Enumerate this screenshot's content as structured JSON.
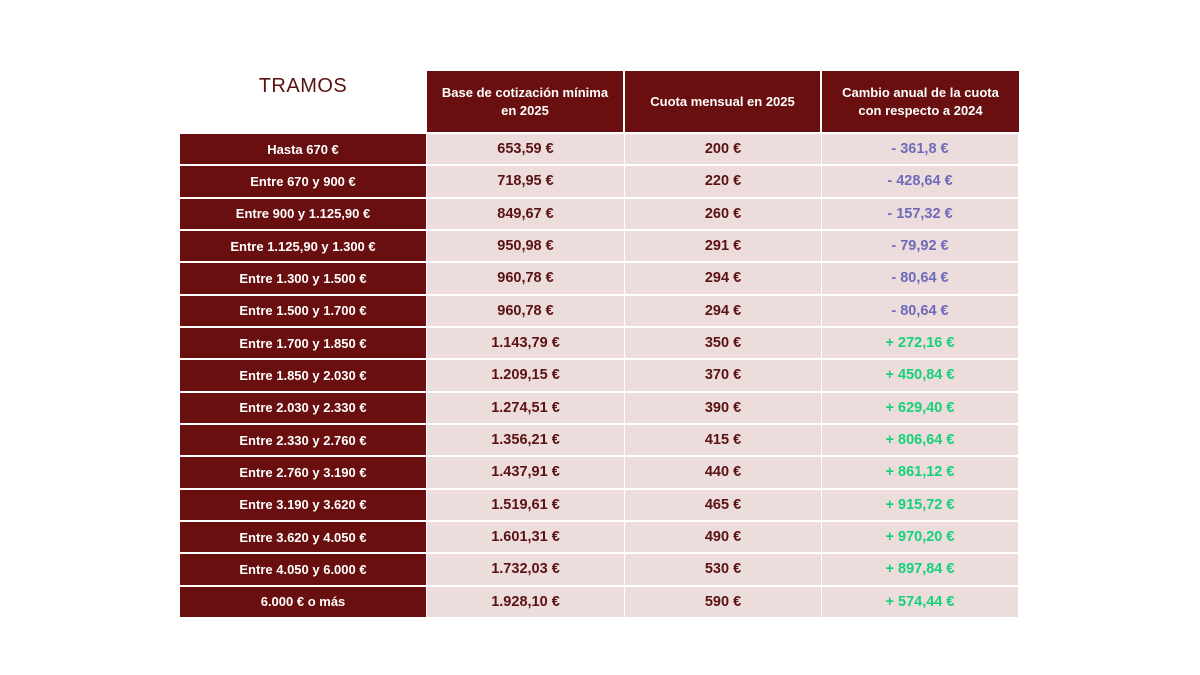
{
  "table": {
    "title": "TRAMOS",
    "headers": [
      "Base de cotización mínima en 2025",
      "Cuota mensual en 2025",
      "Cambio anual de la cuota con respecto a 2024"
    ],
    "rows": [
      {
        "tramo": "Hasta 670 €",
        "base": "653,59 €",
        "cuota": "200 €",
        "cambio": "- 361,8 €"
      },
      {
        "tramo": "Entre 670 y 900 €",
        "base": "718,95 €",
        "cuota": "220 €",
        "cambio": "- 428,64 €"
      },
      {
        "tramo": "Entre 900 y 1.125,90 €",
        "base": "849,67 €",
        "cuota": "260 €",
        "cambio": "- 157,32 €"
      },
      {
        "tramo": "Entre 1.125,90 y 1.300 €",
        "base": "950,98 €",
        "cuota": "291 €",
        "cambio": "- 79,92 €"
      },
      {
        "tramo": "Entre 1.300 y 1.500 €",
        "base": "960,78 €",
        "cuota": "294 €",
        "cambio": "- 80,64 €"
      },
      {
        "tramo": "Entre 1.500 y 1.700 €",
        "base": "960,78 €",
        "cuota": "294 €",
        "cambio": "- 80,64 €"
      },
      {
        "tramo": "Entre 1.700 y 1.850 €",
        "base": "1.143,79 €",
        "cuota": "350 €",
        "cambio": "+ 272,16 €"
      },
      {
        "tramo": "Entre 1.850 y 2.030 €",
        "base": "1.209,15 €",
        "cuota": "370 €",
        "cambio": "+ 450,84 €"
      },
      {
        "tramo": "Entre 2.030 y 2.330 €",
        "base": "1.274,51 €",
        "cuota": "390 €",
        "cambio": "+ 629,40 €"
      },
      {
        "tramo": "Entre 2.330 y 2.760 €",
        "base": "1.356,21 €",
        "cuota": "415 €",
        "cambio": "+ 806,64 €"
      },
      {
        "tramo": "Entre 2.760 y 3.190 €",
        "base": "1.437,91 €",
        "cuota": "440 €",
        "cambio": "+ 861,12 €"
      },
      {
        "tramo": "Entre 3.190 y 3.620 €",
        "base": "1.519,61 €",
        "cuota": "465 €",
        "cambio": "+ 915,72 €"
      },
      {
        "tramo": "Entre 3.620 y 4.050 €",
        "base": "1.601,31 €",
        "cuota": "490 €",
        "cambio": "+ 970,20 €"
      },
      {
        "tramo": "Entre 4.050 y 6.000 €",
        "base": "1.732,03 €",
        "cuota": "530 €",
        "cambio": "+ 897,84 €"
      },
      {
        "tramo": "6.000 € o más",
        "base": "1.928,10 €",
        "cuota": "590 €",
        "cambio": "+ 574,44 €"
      }
    ]
  },
  "colors": {
    "header_bg": "#6a0f0f",
    "cell_bg": "#ecdcdc",
    "text_dark": "#5b1212",
    "negative": "#6d6aba",
    "positive": "#15d178"
  }
}
